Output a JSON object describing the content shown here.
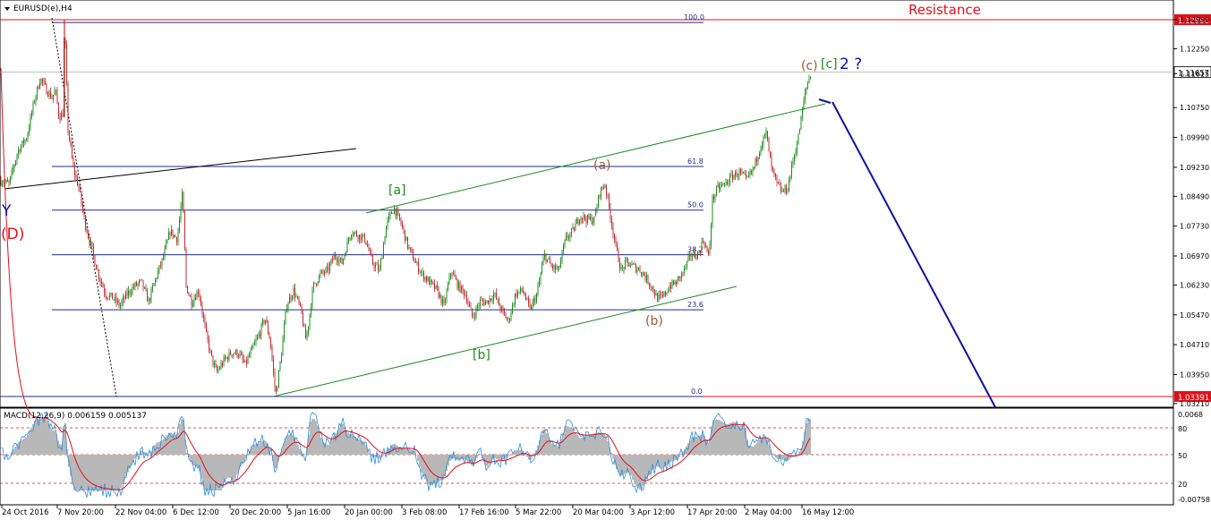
{
  "window": {
    "title": "EURUSD(e),H4"
  },
  "macd": {
    "label": "MACD(12,26,9) 0.006159 0.005137"
  },
  "colors": {
    "bull": "#1a8a1a",
    "bear": "#c0282e",
    "fib": "#1f2c8f",
    "channel": "#1c8a1c",
    "level": "#e0101a",
    "projection": "#0c10a0",
    "macd_hist": "#b8b8b8",
    "macd_main": "#2a8fe0",
    "macd_signal": "#e0101a"
  },
  "chart_data": {
    "type": "candlestick",
    "symbol": "EURUSD(e)",
    "timeframe": "H4",
    "ylim": [
      1.0321,
      1.1365
    ],
    "price_ticks": [
      "1.12990",
      "1.12250",
      "1.11615",
      "1.10750",
      "1.09990",
      "1.09230",
      "1.08490",
      "1.07730",
      "1.06970",
      "1.06230",
      "1.05470",
      "1.04710",
      "1.03950",
      "1.03210"
    ],
    "time_ticks": [
      "24 Oct 2016",
      "7 Nov 20:00",
      "22 Nov 04:00",
      "6 Dec 12:00",
      "20 Dec 20:00",
      "5 Jan 16:00",
      "20 Jan 00:00",
      "3 Feb 08:00",
      "17 Feb 16:00",
      "5 Mar 22:00",
      "20 Mar 04:00",
      "3 Apr 12:00",
      "17 Apr 20:00",
      "2 May 04:00",
      "16 May 12:00"
    ],
    "current_price": {
      "value": 1.11657,
      "label": "1.11657"
    },
    "levels": [
      {
        "value": 1.1299,
        "label": "1.12990",
        "text": "Resistance"
      },
      {
        "value": 1.03391,
        "label": "1.03391"
      }
    ],
    "fib_levels": [
      {
        "pct": "100.0",
        "value": 1.1292
      },
      {
        "pct": "61.8",
        "value": 1.0925
      },
      {
        "pct": "50.0",
        "value": 1.0814
      },
      {
        "pct": "38.2",
        "value": 1.07
      },
      {
        "pct": "23.6",
        "value": 1.056
      },
      {
        "pct": "0.0",
        "value": 1.0339
      }
    ],
    "wave_labels": [
      {
        "text": "Y",
        "color": "#0c10a0"
      },
      {
        "text": "(D)",
        "color": "#e0101a"
      },
      {
        "text": "[a]",
        "color": "#1c8a1c"
      },
      {
        "text": "[b]",
        "color": "#1c8a1c"
      },
      {
        "text": "(a)",
        "color": "#9a5a3a"
      },
      {
        "text": "(b)",
        "color": "#9a5a3a"
      },
      {
        "text": "(c)",
        "color": "#9a5a3a"
      },
      {
        "text": "[c]",
        "color": "#1c8a1c"
      },
      {
        "text": "2 ?",
        "color": "#0c10a0"
      }
    ],
    "price_path": [
      [
        0,
        1.089
      ],
      [
        10,
        1.088
      ],
      [
        20,
        1.0965
      ],
      [
        30,
        1.1
      ],
      [
        38,
        1.109
      ],
      [
        45,
        1.115
      ],
      [
        52,
        1.112
      ],
      [
        58,
        1.11
      ],
      [
        62,
        1.112
      ],
      [
        66,
        1.105
      ],
      [
        70,
        1.106
      ],
      [
        72,
        1.1299
      ],
      [
        76,
        1.102
      ],
      [
        82,
        1.092
      ],
      [
        88,
        1.087
      ],
      [
        95,
        1.078
      ],
      [
        102,
        1.072
      ],
      [
        110,
        1.065
      ],
      [
        118,
        1.06
      ],
      [
        126,
        1.059
      ],
      [
        134,
        1.057
      ],
      [
        142,
        1.06
      ],
      [
        150,
        1.062
      ],
      [
        158,
        1.063
      ],
      [
        166,
        1.058
      ],
      [
        174,
        1.064
      ],
      [
        182,
        1.069
      ],
      [
        190,
        1.076
      ],
      [
        198,
        1.074
      ],
      [
        204,
        1.086
      ],
      [
        208,
        1.062
      ],
      [
        214,
        1.058
      ],
      [
        222,
        1.061
      ],
      [
        230,
        1.05
      ],
      [
        236,
        1.044
      ],
      [
        242,
        1.04
      ],
      [
        250,
        1.043
      ],
      [
        258,
        1.045
      ],
      [
        266,
        1.045
      ],
      [
        274,
        1.042
      ],
      [
        282,
        1.046
      ],
      [
        290,
        1.05
      ],
      [
        296,
        1.054
      ],
      [
        302,
        1.048
      ],
      [
        308,
        1.034
      ],
      [
        314,
        1.044
      ],
      [
        320,
        1.057
      ],
      [
        328,
        1.061
      ],
      [
        336,
        1.056
      ],
      [
        342,
        1.048
      ],
      [
        350,
        1.062
      ],
      [
        358,
        1.065
      ],
      [
        366,
        1.066
      ],
      [
        374,
        1.07
      ],
      [
        382,
        1.068
      ],
      [
        392,
        1.076
      ],
      [
        400,
        1.075
      ],
      [
        408,
        1.074
      ],
      [
        416,
        1.068
      ],
      [
        424,
        1.066
      ],
      [
        432,
        1.078
      ],
      [
        440,
        1.082
      ],
      [
        448,
        1.078
      ],
      [
        456,
        1.072
      ],
      [
        464,
        1.068
      ],
      [
        472,
        1.065
      ],
      [
        480,
        1.063
      ],
      [
        488,
        1.061
      ],
      [
        496,
        1.057
      ],
      [
        504,
        1.066
      ],
      [
        512,
        1.062
      ],
      [
        520,
        1.06
      ],
      [
        528,
        1.054
      ],
      [
        536,
        1.058
      ],
      [
        544,
        1.058
      ],
      [
        552,
        1.06
      ],
      [
        560,
        1.056
      ],
      [
        568,
        1.053
      ],
      [
        576,
        1.06
      ],
      [
        584,
        1.061
      ],
      [
        592,
        1.056
      ],
      [
        600,
        1.06
      ],
      [
        608,
        1.07
      ],
      [
        616,
        1.067
      ],
      [
        624,
        1.066
      ],
      [
        632,
        1.074
      ],
      [
        640,
        1.076
      ],
      [
        648,
        1.08
      ],
      [
        656,
        1.079
      ],
      [
        664,
        1.079
      ],
      [
        670,
        1.086
      ],
      [
        676,
        1.088
      ],
      [
        682,
        1.08
      ],
      [
        688,
        1.072
      ],
      [
        694,
        1.066
      ],
      [
        700,
        1.068
      ],
      [
        708,
        1.067
      ],
      [
        716,
        1.066
      ],
      [
        722,
        1.064
      ],
      [
        728,
        1.062
      ],
      [
        734,
        1.059
      ],
      [
        740,
        1.059
      ],
      [
        748,
        1.062
      ],
      [
        756,
        1.063
      ],
      [
        764,
        1.066
      ],
      [
        772,
        1.07
      ],
      [
        780,
        1.07
      ],
      [
        786,
        1.074
      ],
      [
        792,
        1.069
      ],
      [
        796,
        1.084
      ],
      [
        802,
        1.087
      ],
      [
        810,
        1.088
      ],
      [
        818,
        1.09
      ],
      [
        826,
        1.091
      ],
      [
        834,
        1.089
      ],
      [
        842,
        1.092
      ],
      [
        850,
        1.098
      ],
      [
        856,
        1.101
      ],
      [
        862,
        1.092
      ],
      [
        868,
        1.088
      ],
      [
        874,
        1.086
      ],
      [
        880,
        1.087
      ],
      [
        886,
        1.094
      ],
      [
        892,
        1.1
      ],
      [
        896,
        1.106
      ],
      [
        900,
        1.112
      ],
      [
        904,
        1.115
      ],
      [
        906,
        1.1165
      ]
    ],
    "macd_ticks": [
      "0.0068",
      "80",
      "50",
      "20",
      "-0.00758"
    ]
  }
}
